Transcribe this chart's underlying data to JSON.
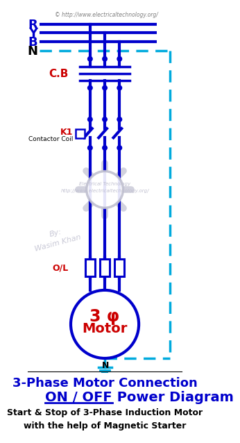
{
  "title_line1": "3-Phase Motor Connection",
  "title_line2_part1": "ON / OFF",
  "title_line2_part2": " Power Diagram",
  "subtitle": "Start & Stop of 3-Phase Induction Motor\nwith the help of Magnetic Starter",
  "watermark1": "© http://www.electricaltechnology.org/",
  "watermark2": "Electrical Technology\nhttp://www.electricaltechnology.org/",
  "watermark3": "By:\nWasim Khan",
  "label_R": "R",
  "label_Y": "Y",
  "label_B": "B",
  "label_N": "N",
  "label_CB": "C.B",
  "label_K1": "K1",
  "label_contactor": "Contactor Coil",
  "label_OL": "O/L",
  "label_motor1": "3 φ",
  "label_motor2": "Motor",
  "label_motor3": "N",
  "blue": "#0000CC",
  "red": "#CC0000",
  "cyan": "#00AADD",
  "light_gray": "#C0C0D0",
  "bg": "#FFFFFF"
}
